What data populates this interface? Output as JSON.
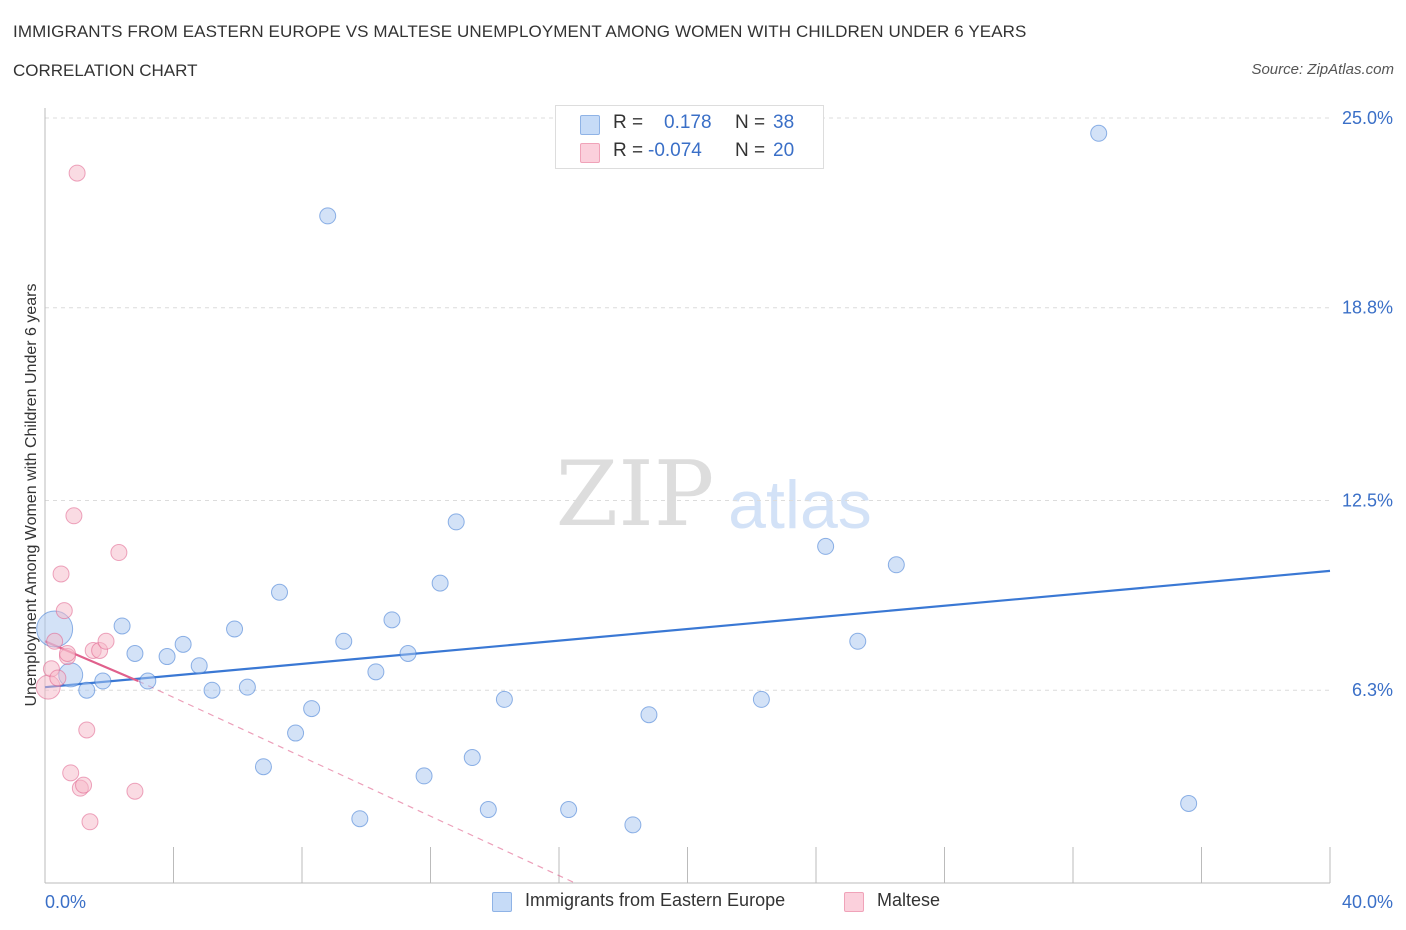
{
  "title": "IMMIGRANTS FROM EASTERN EUROPE VS MALTESE UNEMPLOYMENT AMONG WOMEN WITH CHILDREN UNDER 6 YEARS",
  "subtitle": "CORRELATION CHART",
  "source": "Source: ZipAtlas.com",
  "watermark": {
    "zip": "ZIP",
    "atlas": "atlas"
  },
  "legend": {
    "r_label": "R =",
    "n_label": "N =",
    "rows": [
      {
        "r": "0.178",
        "n": "38",
        "color": "#a8c6f0"
      },
      {
        "r": "-0.074",
        "n": "20",
        "color": "#f5b7c8"
      }
    ]
  },
  "bottom_legend": [
    {
      "label": "Immigrants from Eastern Europe",
      "color": "#a8c6f0"
    },
    {
      "label": "Maltese",
      "color": "#f5b7c8"
    }
  ],
  "chart_data": {
    "type": "scatter",
    "title": "IMMIGRANTS FROM EASTERN EUROPE VS MALTESE UNEMPLOYMENT AMONG WOMEN WITH CHILDREN UNDER 6 YEARS",
    "xlabel": "",
    "ylabel": "Unemployment Among Women with Children Under 6 years",
    "xlim": [
      0,
      40
    ],
    "ylim": [
      0,
      25
    ],
    "x_tick_labels": [
      "0.0%",
      "40.0%"
    ],
    "y_ticks": [
      6.3,
      12.5,
      18.8,
      25.0
    ],
    "y_tick_labels": [
      "6.3%",
      "12.5%",
      "18.8%",
      "25.0%"
    ],
    "grid": true,
    "series": [
      {
        "name": "Immigrants from Eastern Europe",
        "color": "#a8c6f0",
        "stroke": "#3a78d4",
        "trend": {
          "x0": 0.0,
          "y0": 6.4,
          "x1": 40.0,
          "y1": 10.2,
          "style": "solid"
        },
        "points": [
          [
            0.3,
            8.3,
            3
          ],
          [
            0.8,
            6.8,
            2
          ],
          [
            1.3,
            6.3,
            1
          ],
          [
            1.8,
            6.6,
            1
          ],
          [
            2.4,
            8.4,
            1
          ],
          [
            2.8,
            7.5,
            1
          ],
          [
            3.2,
            6.6,
            1
          ],
          [
            3.8,
            7.4,
            1
          ],
          [
            4.3,
            7.8,
            1
          ],
          [
            4.8,
            7.1,
            1
          ],
          [
            5.2,
            6.3,
            1
          ],
          [
            5.9,
            8.3,
            1
          ],
          [
            6.3,
            6.4,
            1
          ],
          [
            6.8,
            3.8,
            1
          ],
          [
            7.3,
            9.5,
            1
          ],
          [
            7.8,
            4.9,
            1
          ],
          [
            8.3,
            5.7,
            1
          ],
          [
            8.8,
            21.8,
            1
          ],
          [
            9.3,
            7.9,
            1
          ],
          [
            9.8,
            2.1,
            1
          ],
          [
            10.3,
            6.9,
            1
          ],
          [
            10.8,
            8.6,
            1
          ],
          [
            11.3,
            7.5,
            1
          ],
          [
            11.8,
            3.5,
            1
          ],
          [
            12.3,
            9.8,
            1
          ],
          [
            12.8,
            11.8,
            1
          ],
          [
            13.3,
            4.1,
            1
          ],
          [
            13.8,
            2.4,
            1
          ],
          [
            14.3,
            6.0,
            1
          ],
          [
            16.3,
            2.4,
            1
          ],
          [
            18.3,
            1.9,
            1
          ],
          [
            18.8,
            5.5,
            1
          ],
          [
            22.3,
            6.0,
            1
          ],
          [
            24.3,
            11.0,
            1
          ],
          [
            25.3,
            7.9,
            1
          ],
          [
            26.5,
            10.4,
            1
          ],
          [
            32.8,
            24.5,
            1
          ],
          [
            35.6,
            2.6,
            1
          ]
        ]
      },
      {
        "name": "Maltese",
        "color": "#f5b7c8",
        "stroke": "#e0608c",
        "trend": {
          "x0": 0.0,
          "y0": 7.9,
          "x1": 2.9,
          "y1": 6.6,
          "style": "solid"
        },
        "trend_ext": {
          "x0": 2.9,
          "y0": 6.6,
          "x1": 16.5,
          "y1": 0.0,
          "style": "dashed"
        },
        "points": [
          [
            0.1,
            6.4,
            2
          ],
          [
            0.2,
            7.0,
            1
          ],
          [
            0.3,
            7.9,
            1
          ],
          [
            0.4,
            6.7,
            1
          ],
          [
            0.5,
            10.1,
            1
          ],
          [
            0.6,
            8.9,
            1
          ],
          [
            0.7,
            7.4,
            1
          ],
          [
            0.8,
            3.6,
            1
          ],
          [
            0.9,
            12.0,
            1
          ],
          [
            1.0,
            23.2,
            1
          ],
          [
            1.1,
            3.1,
            1
          ],
          [
            1.2,
            3.2,
            1
          ],
          [
            1.3,
            5.0,
            1
          ],
          [
            1.4,
            2.0,
            1
          ],
          [
            1.5,
            7.6,
            1
          ],
          [
            1.7,
            7.6,
            1
          ],
          [
            1.9,
            7.9,
            1
          ],
          [
            2.3,
            10.8,
            1
          ],
          [
            2.8,
            3.0,
            1
          ],
          [
            0.7,
            7.5,
            1
          ]
        ]
      }
    ]
  }
}
